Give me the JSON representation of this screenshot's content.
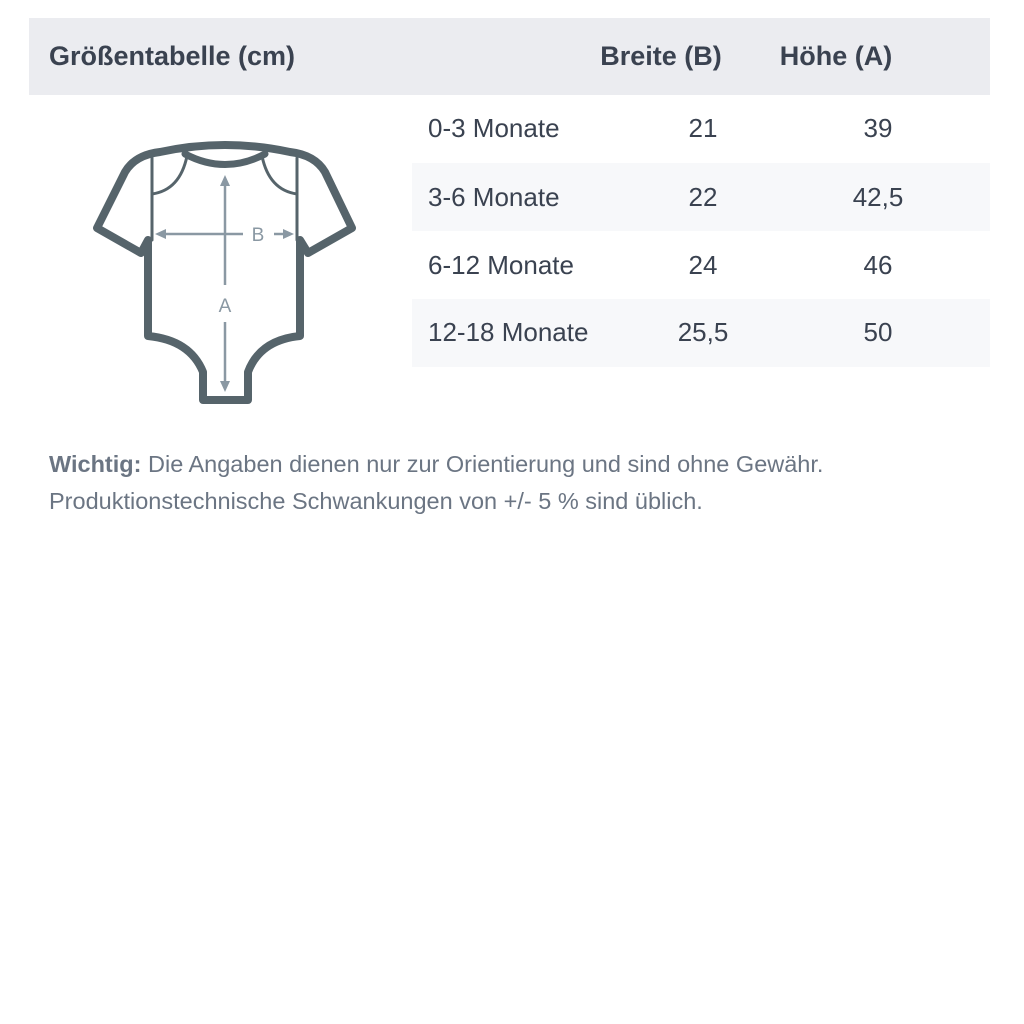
{
  "table": {
    "title": "Größentabelle (cm)",
    "col_width": "Breite (B)",
    "col_height": "Höhe (A)",
    "rows": [
      {
        "size": "0-3 Monate",
        "width": "21",
        "height": "39"
      },
      {
        "size": "3-6 Monate",
        "width": "22",
        "height": "42,5"
      },
      {
        "size": "6-12 Monate",
        "width": "24",
        "height": "46"
      },
      {
        "size": "12-18 Monate",
        "width": "25,5",
        "height": "50"
      }
    ]
  },
  "diagram": {
    "label_b": "B",
    "label_a": "A",
    "outline_color": "#56646b",
    "arrow_color": "#8a98a3"
  },
  "note": {
    "bold": "Wichtig:",
    "line1": " Die Angaben dienen nur zur Orientierung und sind ohne Gewähr.",
    "line2": "Produktionstechnische Schwankungen von +/- 5 % sind üblich."
  }
}
